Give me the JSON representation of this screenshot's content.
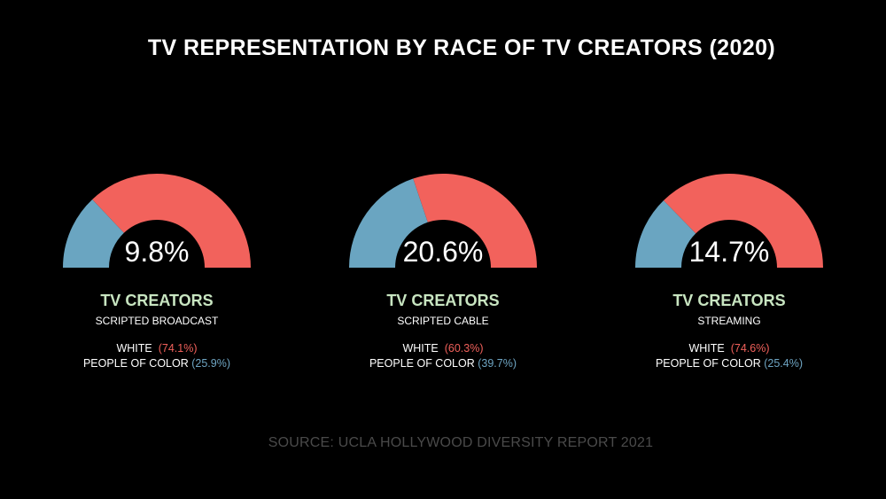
{
  "title": "TV REPRESENTATION BY RACE OF TV CREATORS (2020)",
  "source": "SOURCE: UCLA HOLLYWOOD DIVERSITY REPORT 2021",
  "colors": {
    "white": "#f2625c",
    "poc": "#6aa5c1",
    "heading": "#c8e5c1",
    "background": "#000000"
  },
  "chart_data": [
    {
      "type": "pie",
      "center_label": "9.8%",
      "heading": "TV CREATORS",
      "subtitle": "SCRIPTED BROADCAST",
      "white_label": "WHITE",
      "white_value": "(74.1%)",
      "poc_label": "PEOPLE OF COLOR",
      "poc_value": "(25.9%)",
      "categories": [
        "WHITE",
        "PEOPLE OF COLOR"
      ],
      "values": [
        74.1,
        25.9
      ]
    },
    {
      "type": "pie",
      "center_label": "20.6%",
      "heading": "TV CREATORS",
      "subtitle": "SCRIPTED CABLE",
      "white_label": "WHITE",
      "white_value": "(60.3%)",
      "poc_label": "PEOPLE OF COLOR",
      "poc_value": "(39.7%)",
      "categories": [
        "WHITE",
        "PEOPLE OF COLOR"
      ],
      "values": [
        60.3,
        39.7
      ]
    },
    {
      "type": "pie",
      "center_label": "14.7%",
      "heading": "TV CREATORS",
      "subtitle": "STREAMING",
      "white_label": "WHITE",
      "white_value": "(74.6%)",
      "poc_label": "PEOPLE OF COLOR",
      "poc_value": "(25.4%)",
      "categories": [
        "WHITE",
        "PEOPLE OF COLOR"
      ],
      "values": [
        74.6,
        25.4
      ]
    }
  ]
}
